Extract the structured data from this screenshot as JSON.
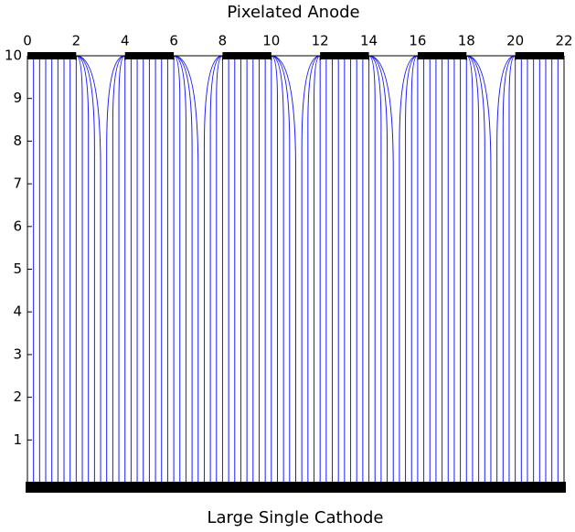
{
  "chart_data": {
    "type": "field-lines",
    "title": "Pixelated Anode",
    "xlabel": "Large Single Cathode",
    "xlim": [
      0,
      22
    ],
    "ylim": [
      0,
      10
    ],
    "xticks": [
      0,
      2,
      4,
      6,
      8,
      10,
      12,
      14,
      16,
      18,
      20,
      22
    ],
    "yticks": [
      1,
      2,
      3,
      4,
      5,
      6,
      7,
      8,
      9,
      10
    ],
    "anodes": [
      [
        0,
        2
      ],
      [
        4,
        6
      ],
      [
        8,
        10
      ],
      [
        12,
        14
      ],
      [
        16,
        18
      ],
      [
        20,
        22
      ]
    ],
    "color": "#1a1aff"
  }
}
